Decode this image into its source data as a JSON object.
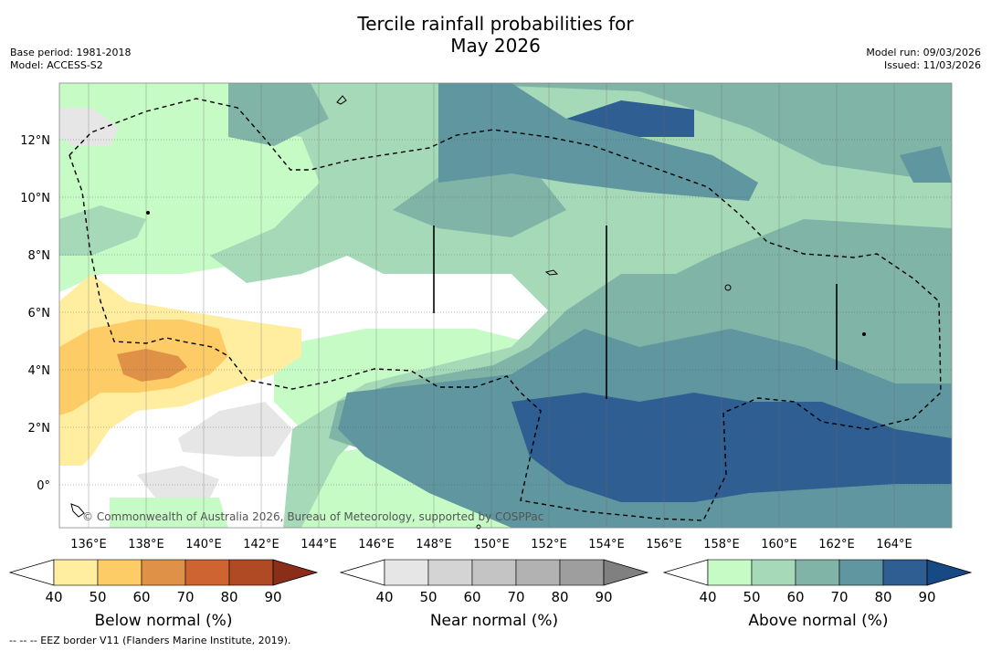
{
  "title_line1": "Tercile rainfall probabilities for",
  "title_line2": "May 2026",
  "base_period": "Base period: 1981-2018",
  "model": "Model: ACCESS-S2",
  "model_run": "Model run: 09/03/2026",
  "issued": "Issued: 11/03/2026",
  "copyright": "© Commonwealth of Australia 2026, Bureau of Meteorology, supported by COSPPac",
  "lat_labels": [
    "12°N",
    "10°N",
    "8°N",
    "6°N",
    "4°N",
    "2°N",
    "0°"
  ],
  "lon_labels": [
    "136°E",
    "138°E",
    "140°E",
    "142°E",
    "144°E",
    "146°E",
    "148°E",
    "150°E",
    "152°E",
    "154°E",
    "156°E",
    "158°E",
    "160°E",
    "162°E",
    "164°E"
  ],
  "colorbars": [
    {
      "title": "Below normal (%)",
      "ticks": [
        "40",
        "50",
        "60",
        "70",
        "80",
        "90"
      ],
      "colors": [
        "#ffeda0",
        "#fecc66",
        "#e09148",
        "#cd6432",
        "#b04a24",
        "#8a2e1a"
      ]
    },
    {
      "title": "Near normal (%)",
      "ticks": [
        "40",
        "50",
        "60",
        "70",
        "80",
        "90"
      ],
      "colors": [
        "#e6e6e6",
        "#d4d4d4",
        "#c4c4c4",
        "#b2b2b2",
        "#9e9e9e",
        "#808080"
      ]
    },
    {
      "title": "Above normal (%)",
      "ticks": [
        "40",
        "50",
        "60",
        "70",
        "80",
        "90"
      ],
      "colors": [
        "#c6fbc6",
        "#a6d9b8",
        "#80b4a7",
        "#5f96a0",
        "#2e5e92",
        "#174a84"
      ]
    }
  ],
  "footer": "--  --  -- EEZ border V11 (Flanders Marine Institute, 2019)."
}
